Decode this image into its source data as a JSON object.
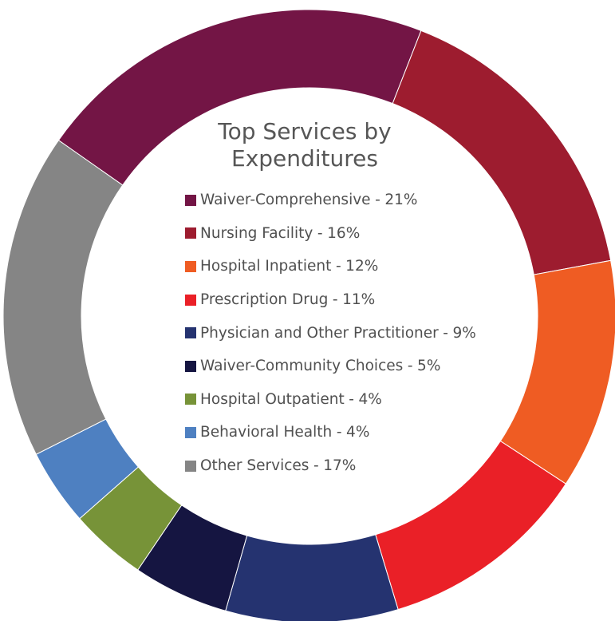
{
  "chart_data": {
    "type": "pie",
    "style": "donut",
    "title": "Top Services by Expenditures",
    "legend_placement": "center",
    "slices": [
      {
        "label": "Waiver-Comprehensive",
        "value": 21,
        "percent_label": "21%",
        "color": "#731545"
      },
      {
        "label": "Nursing Facility",
        "value": 16,
        "percent_label": "16%",
        "color": "#9d1c2f"
      },
      {
        "label": "Hospital Inpatient",
        "value": 12,
        "percent_label": "12%",
        "color": "#ef5c23"
      },
      {
        "label": "Prescription Drug",
        "value": 11,
        "percent_label": "11%",
        "color": "#ea2027"
      },
      {
        "label": "Physician and Other Practitioner",
        "value": 9,
        "percent_label": "9%",
        "color": "#253370"
      },
      {
        "label": "Waiver-Community Choices",
        "value": 5,
        "percent_label": "5%",
        "color": "#151541"
      },
      {
        "label": "Hospital Outpatient",
        "value": 4,
        "percent_label": "4%",
        "color": "#779338"
      },
      {
        "label": "Behavioral Health",
        "value": 4,
        "percent_label": "4%",
        "color": "#4e80c1"
      },
      {
        "label": "Other Services",
        "value": 17,
        "percent_label": "17%",
        "color": "#858585"
      }
    ]
  }
}
